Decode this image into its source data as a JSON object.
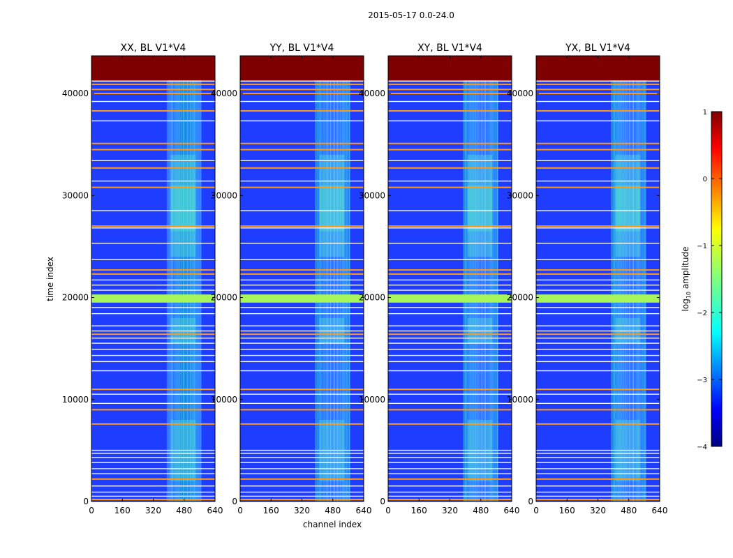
{
  "chart_data": {
    "type": "heatmap",
    "suptitle": "2015-05-17 0.0-24.0",
    "xlabel": "channel index",
    "ylabel": "time index",
    "panels": [
      {
        "title": "XX, BL V1*V4",
        "polarization": "XX"
      },
      {
        "title": "YY, BL V1*V4",
        "polarization": "YY"
      },
      {
        "title": "XY, BL V1*V4",
        "polarization": "XY"
      },
      {
        "title": "YX, BL V1*V4",
        "polarization": "YX"
      }
    ],
    "xlim": [
      0,
      640
    ],
    "ylim": [
      0,
      43700
    ],
    "xticks": [
      0,
      160,
      320,
      480,
      640
    ],
    "yticks": [
      0,
      10000,
      20000,
      30000,
      40000
    ],
    "colorbar": {
      "label_prefix": "log",
      "label_sub": "10",
      "label_suffix": " amplitude",
      "range": [
        -4,
        1
      ],
      "ticks": [
        1,
        0,
        -1,
        -2,
        -3,
        -4
      ],
      "tick_labels": [
        "1",
        "0",
        "−1",
        "−2",
        "−3",
        "−4"
      ],
      "colormap": "jet"
    },
    "features": {
      "saturated_band_time": [
        41300,
        43700
      ],
      "rfi_channel_range": [
        390,
        570
      ],
      "orange_flag_rows": [
        200,
        2200,
        7600,
        9000,
        11000,
        16400,
        22300,
        22700,
        27000,
        30800,
        32700,
        34500,
        35100,
        38300,
        40000,
        40400,
        40900
      ],
      "green_band_time": [
        19500,
        20300
      ],
      "white_gap_rows": [
        500,
        900,
        1500,
        2700,
        3200,
        3800,
        4300,
        4700,
        5000,
        9600,
        10500,
        12800,
        13700,
        14300,
        14900,
        15500,
        16000,
        16700,
        17200,
        18400,
        19000,
        20700,
        21200,
        21700,
        23700,
        25300,
        26800,
        28500,
        31400,
        33400,
        37300,
        39200,
        41200
      ]
    }
  }
}
